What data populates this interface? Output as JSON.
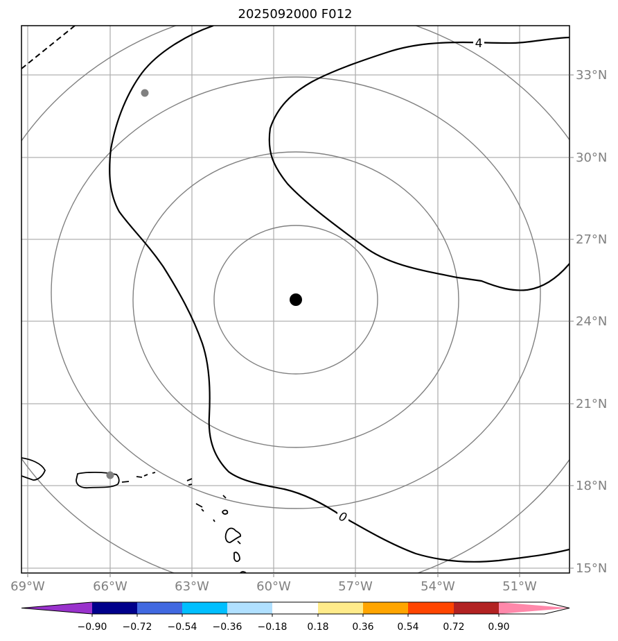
{
  "title": "2025092000 F012",
  "lon_labels": [
    "69°W",
    "66°W",
    "63°W",
    "60°W",
    "57°W",
    "54°W",
    "51°W"
  ],
  "lat_labels": [
    "33°N",
    "30°N",
    "27°N",
    "24°N",
    "21°N",
    "18°N",
    "15°N"
  ],
  "contour_labels": {
    "c4": "4",
    "c0": "0"
  },
  "colorbar": {
    "ticks": [
      "−0.90",
      "−0.72",
      "−0.54",
      "−0.36",
      "−0.18",
      "0.18",
      "0.36",
      "0.54",
      "0.72",
      "0.90"
    ],
    "colors": [
      "#9932cc",
      "#00008b",
      "#4169e1",
      "#00bfff",
      "#b0e0ff",
      "#ffffff",
      "#ffeb8a",
      "#ffa500",
      "#ff4500",
      "#b22222",
      "#ff88aa"
    ]
  },
  "colors": {
    "grid": "#b0b0b0",
    "range_ring": "#808080",
    "contour": "#000000",
    "storm_center": "#000000",
    "marker": "#808080"
  }
}
